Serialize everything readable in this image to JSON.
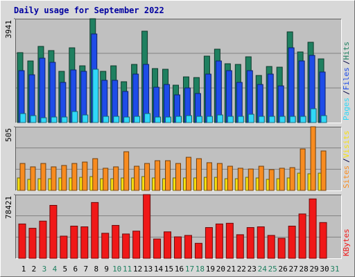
{
  "title": "Daily usage for September 2022",
  "chart_data": [
    {
      "type": "bar",
      "ylim": [
        0,
        3941
      ],
      "yticks": [
        3941
      ],
      "legend_separator": "/",
      "series": [
        {
          "name": "Hits",
          "color": "#1f8060",
          "values": [
            2654,
            2338,
            2890,
            2732,
            1944,
            2837,
            2154,
            3941,
            1944,
            2154,
            1550,
            2207,
            3468,
            2049,
            2023,
            1419,
            1734,
            1708,
            2522,
            2785,
            2233,
            2207,
            2496,
            1787,
            2128,
            2102,
            3442,
            2680,
            3048,
            2417,
            null
          ]
        },
        {
          "name": "Files",
          "color": "#1e4ce8",
          "values": [
            1970,
            1813,
            2443,
            2286,
            1524,
            1997,
            1944,
            3363,
            1603,
            1603,
            1182,
            1839,
            2207,
            1340,
            1445,
            1051,
            1314,
            1103,
            1839,
            2338,
            1970,
            1524,
            1970,
            1445,
            1839,
            1392,
            2837,
            2338,
            2549,
            1918,
            null
          ]
        },
        {
          "name": "Pages",
          "color": "#30d8f8",
          "values": [
            342,
            263,
            184,
            210,
            210,
            420,
            289,
            2023,
            236,
            236,
            210,
            236,
            342,
            210,
            210,
            236,
            263,
            236,
            236,
            289,
            236,
            236,
            315,
            236,
            236,
            236,
            236,
            236,
            525,
            263,
            null
          ]
        }
      ]
    },
    {
      "type": "bar",
      "ylim": [
        0,
        505
      ],
      "yticks": [
        505
      ],
      "legend_separator": "/",
      "series": [
        {
          "name": "Visits",
          "color": "#f8e010",
          "values": [
            99,
            88,
            93,
            93,
            99,
            99,
            104,
            110,
            93,
            93,
            99,
            99,
            110,
            99,
            93,
            99,
            99,
            99,
            104,
            104,
            93,
            93,
            104,
            99,
            88,
            93,
            99,
            137,
            132,
            137,
            null
          ]
        },
        {
          "name": "Sites",
          "color": "#f88c20",
          "values": [
            214,
            187,
            214,
            187,
            198,
            214,
            225,
            252,
            176,
            187,
            307,
            192,
            214,
            236,
            236,
            214,
            263,
            252,
            220,
            214,
            192,
            176,
            170,
            192,
            165,
            176,
            181,
            329,
            505,
            313,
            null
          ]
        }
      ]
    },
    {
      "type": "bar",
      "ylim": [
        0,
        78421
      ],
      "yticks": [
        78421
      ],
      "categories": [
        "1",
        "2",
        "3",
        "4",
        "5",
        "6",
        "7",
        "8",
        "9",
        "10",
        "11",
        "12",
        "13",
        "14",
        "15",
        "16",
        "17",
        "18",
        "19",
        "20",
        "21",
        "22",
        "23",
        "24",
        "25",
        "26",
        "27",
        "28",
        "29",
        "30",
        "31"
      ],
      "category_colors": [
        "#000000",
        "#000000",
        "#1f8060",
        "#1f8060",
        "#000000",
        "#000000",
        "#000000",
        "#000000",
        "#000000",
        "#1f8060",
        "#1f8060",
        "#000000",
        "#000000",
        "#000000",
        "#000000",
        "#000000",
        "#1f8060",
        "#1f8060",
        "#000000",
        "#000000",
        "#000000",
        "#000000",
        "#000000",
        "#1f8060",
        "#1f8060",
        "#000000",
        "#000000",
        "#000000",
        "#000000",
        "#000000",
        "#1f8060"
      ],
      "series": [
        {
          "name": "KBytes",
          "color": "#f01818",
          "values": [
            42294,
            37007,
            45819,
            65203,
            27315,
            39650,
            38769,
            68727,
            30839,
            40532,
            29958,
            33483,
            78421,
            23790,
            32601,
            26433,
            28196,
            18503,
            37888,
            42294,
            43175,
            29077,
            37888,
            38769,
            28196,
            24671,
            39650,
            54629,
            73133,
            44056,
            null
          ]
        }
      ]
    }
  ]
}
